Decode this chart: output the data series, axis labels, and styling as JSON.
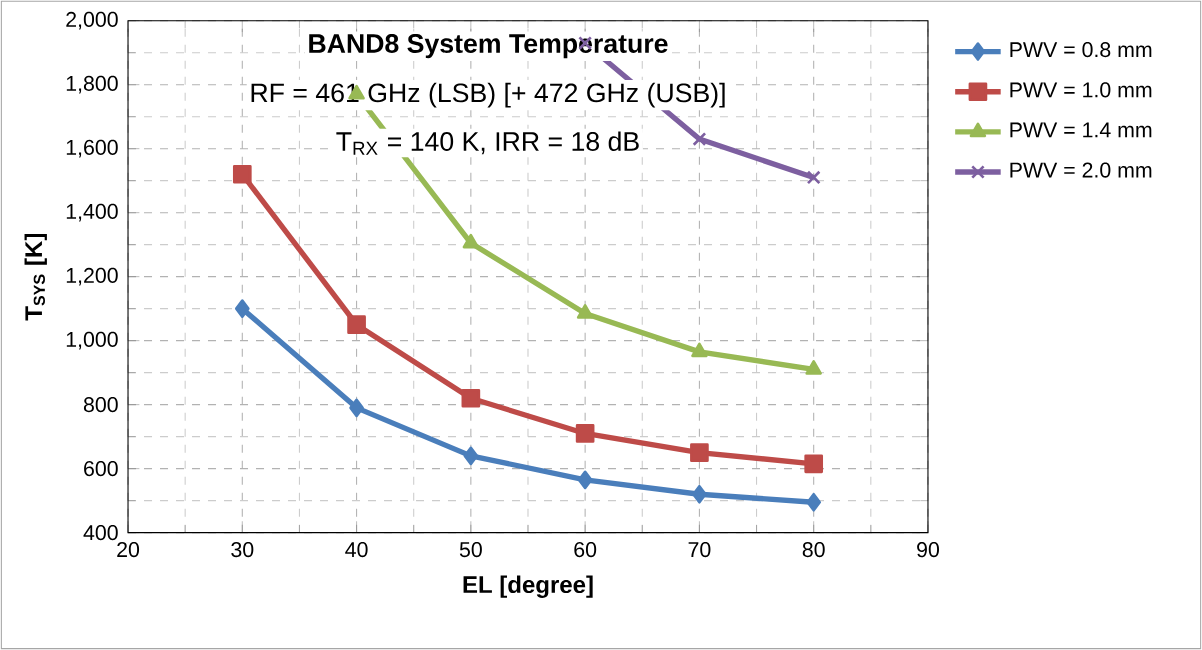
{
  "chart_data": {
    "type": "line",
    "title": "BAND8 System Temperature",
    "subtitle": "RF = 461 GHz (LSB) [+ 472 GHz (USB)]",
    "annotations": [
      "T$_{RX}$ = 140 K, IRR = 18 dB"
    ],
    "xlabel": "EL [degree]",
    "ylabel": "T$_{SYS}$ [K]",
    "x": [
      30,
      40,
      50,
      60,
      70,
      80
    ],
    "series": [
      {
        "name": "PWV = 0.8 mm",
        "color": "#4a7ebb",
        "marker": "diamond",
        "values": [
          1100,
          790,
          640,
          565,
          520,
          495
        ]
      },
      {
        "name": "PWV = 1.0 mm",
        "color": "#be4b48",
        "marker": "square",
        "values": [
          1520,
          1050,
          820,
          710,
          650,
          615
        ]
      },
      {
        "name": "PWV = 1.4 mm",
        "color": "#98b954",
        "marker": "triangle",
        "values": [
          null,
          1770,
          1305,
          1085,
          965,
          910
        ]
      },
      {
        "name": "PWV = 2.0 mm",
        "color": "#7d5fa0",
        "marker": "cross",
        "values": [
          null,
          null,
          null,
          1930,
          1630,
          1510
        ]
      }
    ],
    "xlim": [
      20,
      90
    ],
    "xticks": [
      20,
      30,
      40,
      50,
      60,
      70,
      80,
      90
    ],
    "ylim": [
      400,
      2000
    ],
    "yticks": [
      {
        "value": 400,
        "label": "400"
      },
      {
        "value": 600,
        "label": "600"
      },
      {
        "value": 800,
        "label": "800"
      },
      {
        "value": 1000,
        "label": "1,000"
      },
      {
        "value": 1200,
        "label": "1,200"
      },
      {
        "value": 1400,
        "label": "1,400"
      },
      {
        "value": 1600,
        "label": "1,600"
      },
      {
        "value": 1800,
        "label": "1,800"
      },
      {
        "value": 2000,
        "label": "2,000"
      }
    ],
    "grid": true,
    "legend": "right",
    "line_style": "solid"
  }
}
